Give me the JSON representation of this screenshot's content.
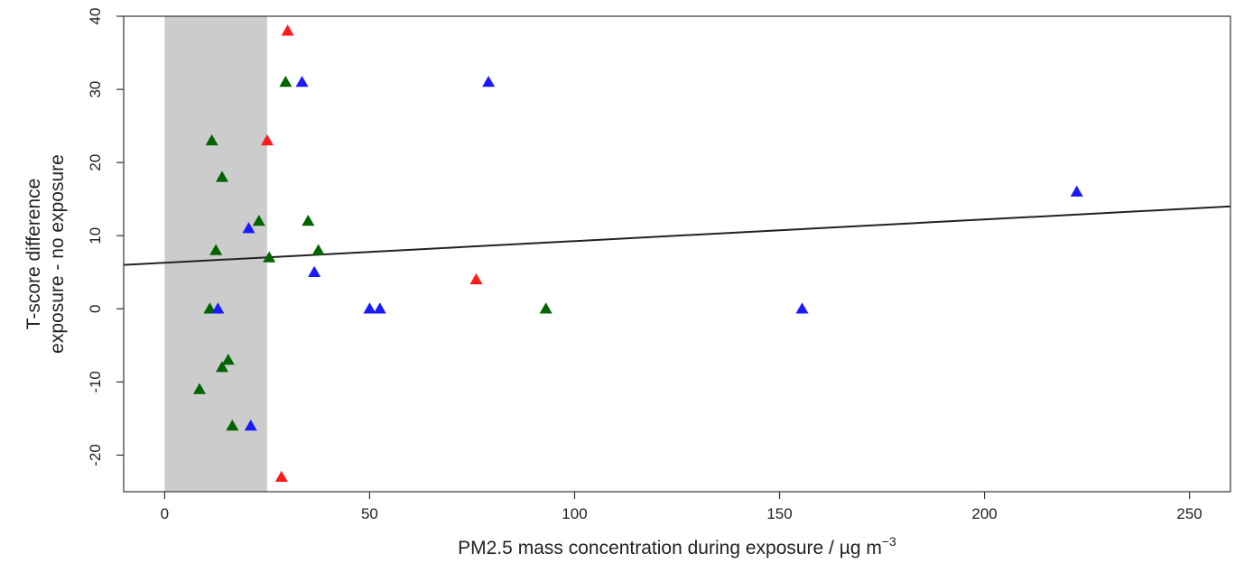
{
  "chart_data": {
    "type": "scatter",
    "title": "",
    "xlabel": "PM2.5 mass concentration during exposure  /  µg m",
    "xlabel_superscript": "−3",
    "ylabel_lines": [
      "T-score difference",
      "exposure - no exposure"
    ],
    "xlim": [
      -10,
      260
    ],
    "ylim": [
      -25,
      40
    ],
    "x_ticks": [
      0,
      50,
      100,
      150,
      200,
      250
    ],
    "y_ticks": [
      -20,
      -10,
      0,
      10,
      20,
      30,
      40
    ],
    "grid": false,
    "marker": "triangle",
    "shaded_band": {
      "x": [
        0,
        25
      ],
      "color": "#cccccc"
    },
    "trend_line": {
      "x": [
        -10,
        260
      ],
      "y": [
        6.0,
        14.0
      ],
      "color": "#222222"
    },
    "series": [
      {
        "color": "#ff1a1a",
        "points": [
          {
            "x": 30,
            "y": 38
          },
          {
            "x": 25,
            "y": 23
          },
          {
            "x": 76,
            "y": 4
          },
          {
            "x": 28.5,
            "y": -23
          }
        ]
      },
      {
        "color": "#006400",
        "points": [
          {
            "x": 29.5,
            "y": 31
          },
          {
            "x": 11.5,
            "y": 23
          },
          {
            "x": 14,
            "y": 18
          },
          {
            "x": 23,
            "y": 12
          },
          {
            "x": 35,
            "y": 12
          },
          {
            "x": 12.5,
            "y": 8
          },
          {
            "x": 37.5,
            "y": 8
          },
          {
            "x": 25.5,
            "y": 7
          },
          {
            "x": 11,
            "y": 0
          },
          {
            "x": 93,
            "y": 0
          },
          {
            "x": 15.5,
            "y": -7
          },
          {
            "x": 14,
            "y": -8
          },
          {
            "x": 8.5,
            "y": -11
          },
          {
            "x": 16.5,
            "y": -16
          }
        ]
      },
      {
        "color": "#1a1aff",
        "points": [
          {
            "x": 33.5,
            "y": 31
          },
          {
            "x": 79,
            "y": 31
          },
          {
            "x": 222.5,
            "y": 16
          },
          {
            "x": 20.5,
            "y": 11
          },
          {
            "x": 36.5,
            "y": 5
          },
          {
            "x": 13,
            "y": 0
          },
          {
            "x": 50,
            "y": 0
          },
          {
            "x": 52.5,
            "y": 0
          },
          {
            "x": 155.5,
            "y": 0
          },
          {
            "x": 21,
            "y": -16
          }
        ]
      }
    ]
  }
}
